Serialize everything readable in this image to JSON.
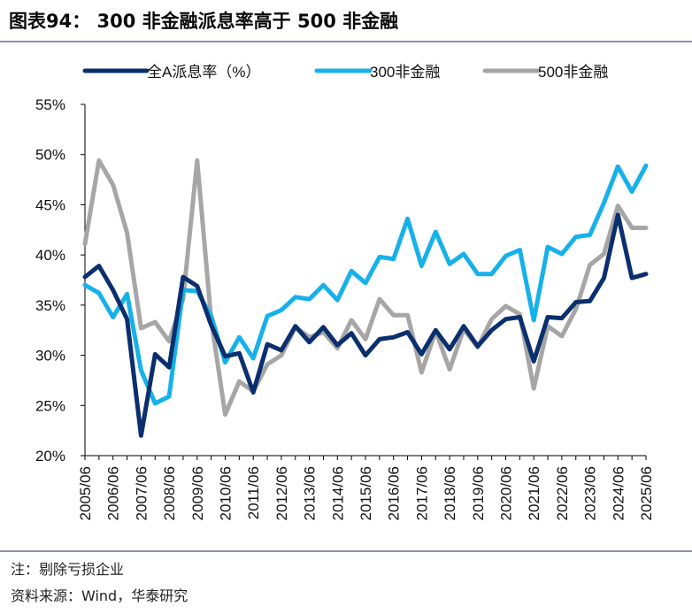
{
  "figure": {
    "title": "图表94： 300 非金融派息率高于 500 非金融",
    "note": "注：剔除亏损企业",
    "source": "资料来源：Wind，华泰研究"
  },
  "colors": {
    "all_a": "#0b2f6e",
    "csi300": "#17b1ea",
    "csi500": "#a6a6a6",
    "rule": "#8a92b2"
  },
  "chart_data": {
    "type": "line",
    "title": "",
    "xlabel": "",
    "ylabel": "",
    "ylim": [
      20,
      55
    ],
    "ytick_step": 5,
    "ytick_labels": [
      "20%",
      "25%",
      "30%",
      "35%",
      "40%",
      "45%",
      "50%",
      "55%"
    ],
    "x_period_months": 6,
    "x_labels": [
      "2005/06",
      "2006/06",
      "2007/06",
      "2008/06",
      "2009/06",
      "2010/06",
      "2011/06",
      "2012/06",
      "2013/06",
      "2014/06",
      "2015/06",
      "2016/06",
      "2017/06",
      "2018/06",
      "2019/06",
      "2020/06",
      "2021/06",
      "2022/06",
      "2023/06",
      "2024/06",
      "2025/06"
    ],
    "grid": false,
    "legend_position": "top",
    "series": [
      {
        "name": "全A派息率（%）",
        "color_key": "all_a",
        "values": [
          37.8,
          38.9,
          36.5,
          33.6,
          22.0,
          30.1,
          28.8,
          37.8,
          36.9,
          33.0,
          29.9,
          30.2,
          26.3,
          31.1,
          30.5,
          32.9,
          31.3,
          32.8,
          31.0,
          32.2,
          30.0,
          31.6,
          31.8,
          32.3,
          30.1,
          32.5,
          30.6,
          32.9,
          30.9,
          32.5,
          33.6,
          33.8,
          29.4,
          33.8,
          33.7,
          35.3,
          35.4,
          37.7,
          44.0,
          37.7,
          38.1
        ]
      },
      {
        "name": "300非金融",
        "color_key": "csi300",
        "values": [
          37.0,
          36.2,
          33.8,
          36.1,
          28.5,
          25.2,
          25.9,
          36.5,
          36.4,
          33.9,
          29.3,
          31.8,
          29.7,
          33.9,
          34.5,
          35.8,
          35.6,
          37.0,
          35.5,
          38.4,
          37.2,
          39.8,
          39.6,
          43.6,
          38.9,
          42.3,
          39.1,
          40.1,
          38.1,
          38.1,
          39.9,
          40.5,
          33.5,
          40.8,
          40.1,
          41.8,
          42.0,
          45.2,
          48.8,
          46.3,
          48.9
        ]
      },
      {
        "name": "500非金融",
        "color_key": "csi500",
        "values": [
          41.1,
          49.4,
          47.0,
          42.2,
          32.7,
          33.3,
          31.4,
          35.6,
          49.4,
          33.5,
          24.1,
          27.4,
          26.4,
          29.1,
          30.0,
          32.8,
          31.8,
          32.3,
          30.7,
          33.5,
          31.6,
          35.6,
          34.0,
          34.0,
          28.3,
          32.4,
          28.6,
          32.6,
          30.8,
          33.6,
          34.9,
          34.1,
          26.7,
          32.9,
          31.9,
          34.6,
          39.0,
          40.1,
          44.9,
          42.7,
          42.7
        ]
      }
    ]
  }
}
